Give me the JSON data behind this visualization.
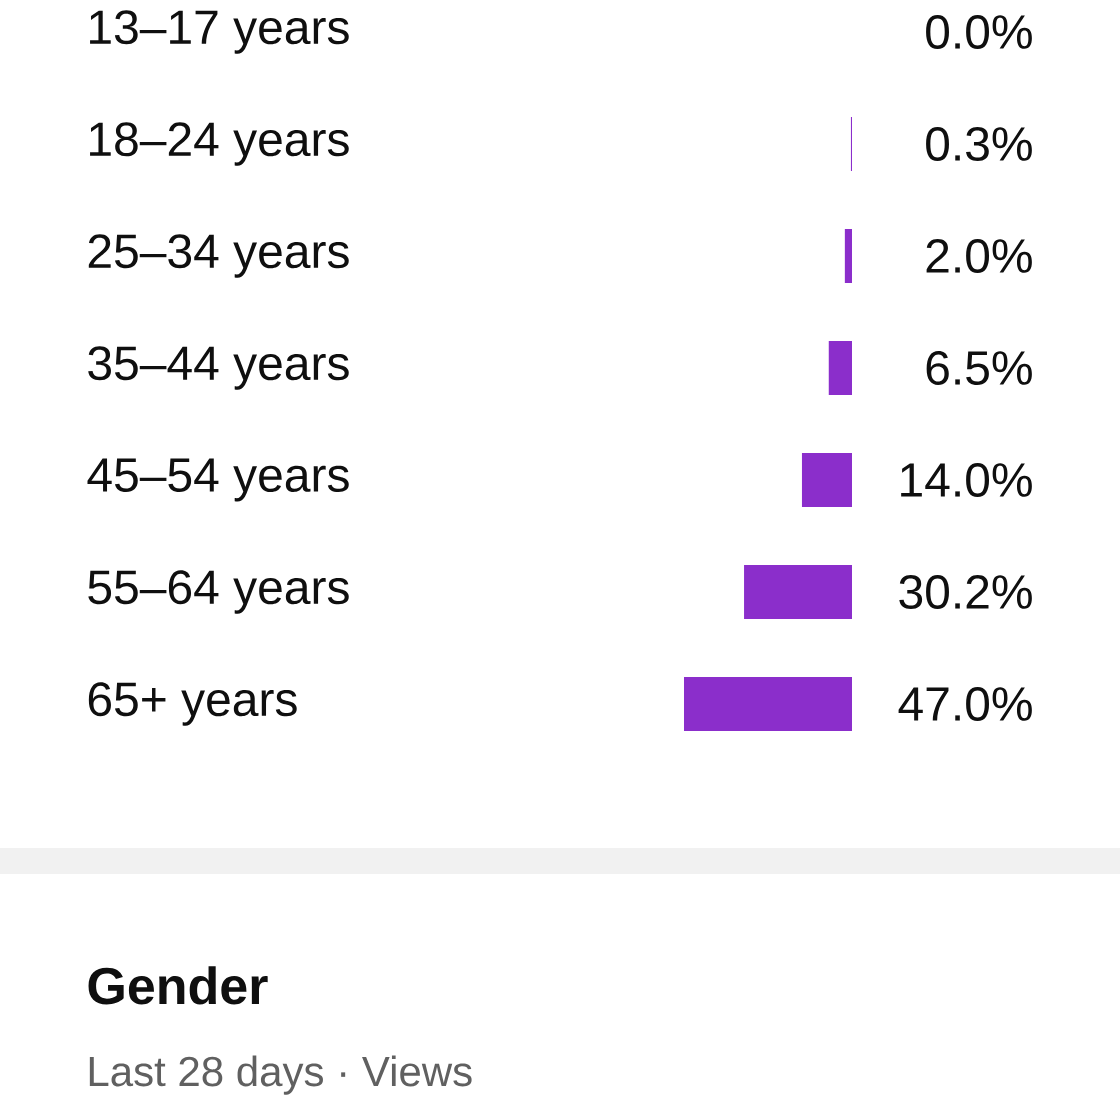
{
  "chart_data": {
    "type": "bar",
    "orientation": "horizontal",
    "categories": [
      "13–17 years",
      "18–24 years",
      "25–34 years",
      "35–44 years",
      "45–54 years",
      "55–64 years",
      "65+ years"
    ],
    "values": [
      0.0,
      0.3,
      2.0,
      6.5,
      14.0,
      30.2,
      47.0
    ],
    "value_labels": [
      "0.0%",
      "0.3%",
      "2.0%",
      "6.5%",
      "14.0%",
      "30.2%",
      "47.0%"
    ],
    "color": "#8b2ecb",
    "xlim": [
      47,
      0
    ],
    "tick_labels": "y",
    "annotations": [
      "Gender",
      "Last 28 days · Views"
    ]
  }
}
